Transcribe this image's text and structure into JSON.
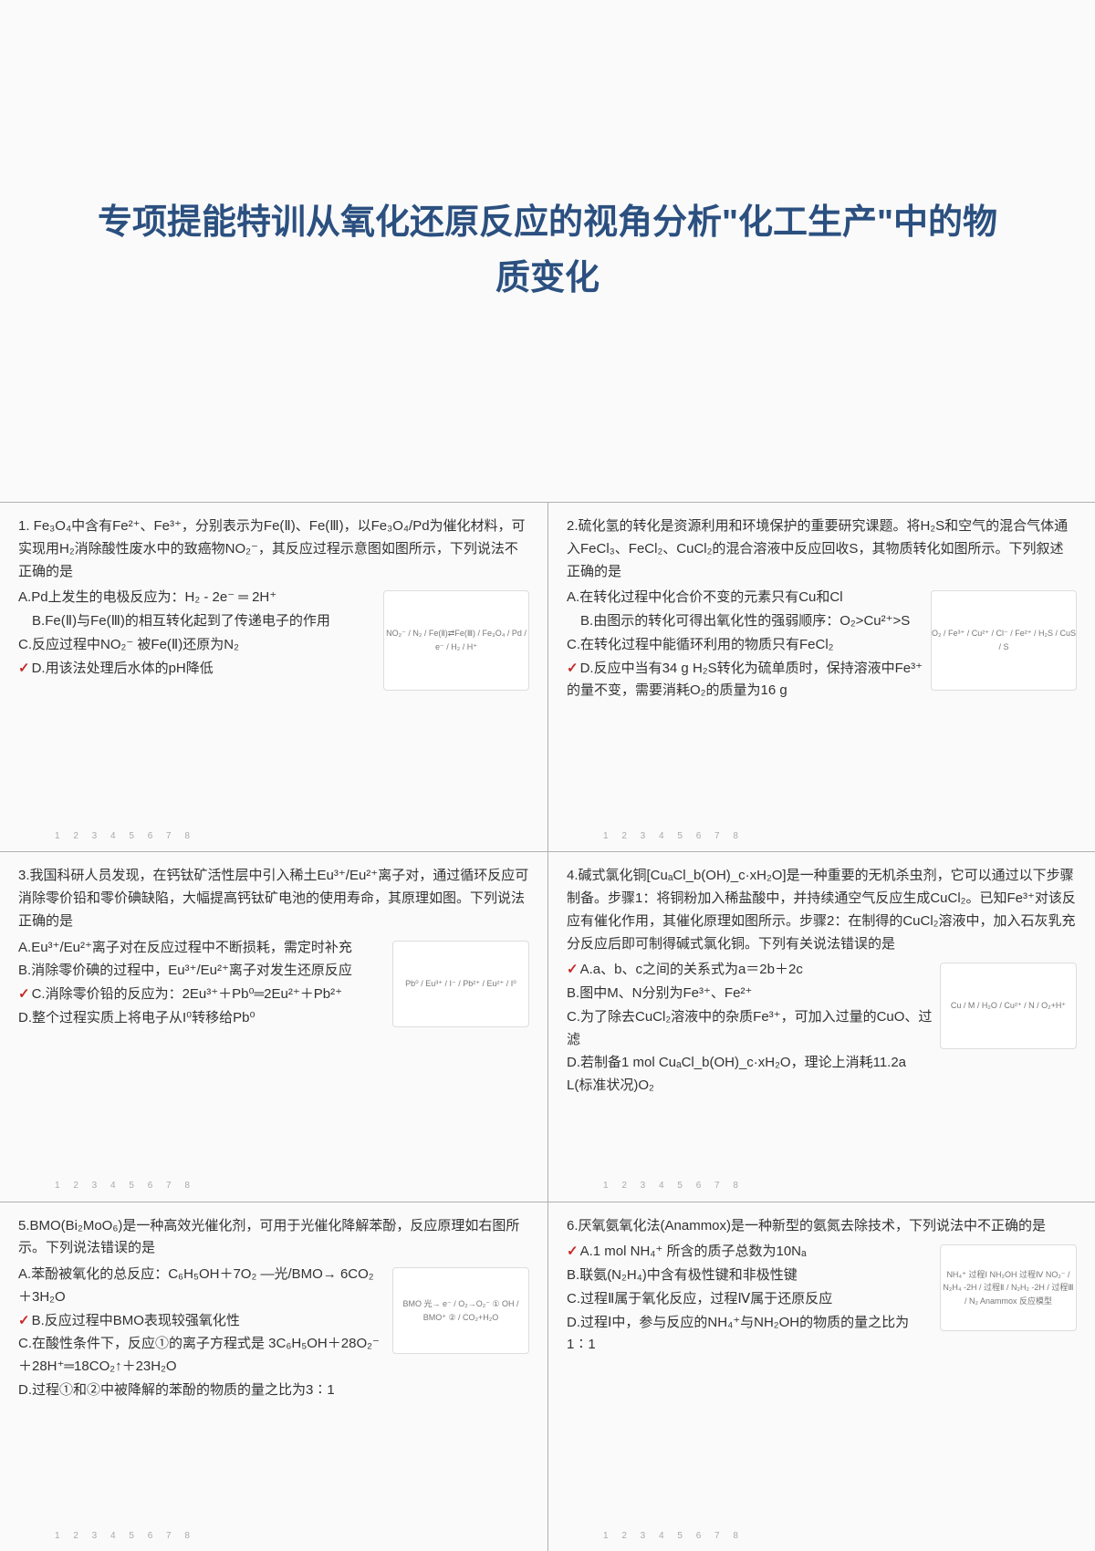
{
  "title": "专项提能特训从氧化还原反应的视角分析\"化工生产\"中的物质变化",
  "pager": "1 2 3 4 5 6 7 8",
  "questions": [
    {
      "stem": "1. Fe₃O₄中含有Fe²⁺、Fe³⁺，分别表示为Fe(Ⅱ)、Fe(Ⅲ)，以Fe₃O₄/Pd为催化材料，可实现用H₂消除酸性废水中的致癌物NO₂⁻，其反应过程示意图如图所示，下列说法不正确的是",
      "fig": "NO₂⁻ / N₂ / Fe(Ⅱ)⇄Fe(Ⅲ) / Fe₃O₄ / Pd / e⁻ / H₂ / H⁺",
      "opts": [
        {
          "k": "A",
          "t": "Pd上发生的电极反应为：H₂ - 2e⁻ ═ 2H⁺",
          "m": false
        },
        {
          "k": "B",
          "t": "Fe(Ⅱ)与Fe(Ⅲ)的相互转化起到了传递电子的作用",
          "m": false,
          "indent": true
        },
        {
          "k": "C",
          "t": "反应过程中NO₂⁻ 被Fe(Ⅱ)还原为N₂",
          "m": false
        },
        {
          "k": "D",
          "t": "用该法处理后水体的pH降低",
          "m": true
        }
      ]
    },
    {
      "stem": "2.硫化氢的转化是资源利用和环境保护的重要研究课题。将H₂S和空气的混合气体通入FeCl₃、FeCl₂、CuCl₂的混合溶液中反应回收S，其物质转化如图所示。下列叙述正确的是",
      "fig": "O₂ / Fe³⁺ / Cu²⁺ / Cl⁻ / Fe²⁺ / H₂S / CuS / S",
      "opts": [
        {
          "k": "A",
          "t": "在转化过程中化合价不变的元素只有Cu和Cl",
          "m": false
        },
        {
          "k": "B",
          "t": "由图示的转化可得出氧化性的强弱顺序：O₂>Cu²⁺>S",
          "m": false,
          "indent": true
        },
        {
          "k": "C",
          "t": "在转化过程中能循环利用的物质只有FeCl₂",
          "m": false
        },
        {
          "k": "D",
          "t": "反应中当有34 g H₂S转化为硫单质时，保持溶液中Fe³⁺的量不变，需要消耗O₂的质量为16 g",
          "m": true
        }
      ]
    },
    {
      "stem": "3.我国科研人员发现，在钙钛矿活性层中引入稀土Eu³⁺/Eu²⁺离子对，通过循环反应可消除零价铅和零价碘缺陷，大幅提高钙钛矿电池的使用寿命，其原理如图。下列说法正确的是",
      "fig": "Pb⁰ / Eu³⁺ / I⁻ / Pb²⁺ / Eu²⁺ / I⁰",
      "opts": [
        {
          "k": "A",
          "t": "Eu³⁺/Eu²⁺离子对在反应过程中不断损耗，需定时补充",
          "m": false
        },
        {
          "k": "B",
          "t": "消除零价碘的过程中，Eu³⁺/Eu²⁺离子对发生还原反应",
          "m": false
        },
        {
          "k": "C",
          "t": "消除零价铅的反应为：2Eu³⁺＋Pb⁰═2Eu²⁺＋Pb²⁺",
          "m": true
        },
        {
          "k": "D",
          "t": "整个过程实质上将电子从I⁰转移给Pb⁰",
          "m": false
        }
      ]
    },
    {
      "stem": "4.碱式氯化铜[CuₐCl_b(OH)_c·xH₂O]是一种重要的无机杀虫剂，它可以通过以下步骤制备。步骤1：将铜粉加入稀盐酸中，并持续通空气反应生成CuCl₂。已知Fe³⁺对该反应有催化作用，其催化原理如图所示。步骤2：在制得的CuCl₂溶液中，加入石灰乳充分反应后即可制得碱式氯化铜。下列有关说法错误的是",
      "fig": "Cu / M / H₂O / Cu²⁺ / N / O₂+H⁺",
      "opts": [
        {
          "k": "A",
          "t": "a、b、c之间的关系式为a＝2b＋2c",
          "m": true
        },
        {
          "k": "B",
          "t": "图中M、N分别为Fe³⁺、Fe²⁺",
          "m": false
        },
        {
          "k": "C",
          "t": "为了除去CuCl₂溶液中的杂质Fe³⁺，可加入过量的CuO、过滤",
          "m": false
        },
        {
          "k": "D",
          "t": "若制备1 mol CuₐCl_b(OH)_c·xH₂O，理论上消耗11.2a L(标准状况)O₂",
          "m": false
        }
      ]
    },
    {
      "stem": "5.BMO(Bi₂MoO₆)是一种高效光催化剂，可用于光催化降解苯酚，反应原理如右图所示。下列说法错误的是",
      "fig": "BMO 光→ e⁻ / O₂→O₂⁻ ① OH / BMO⁺ ② / CO₂+H₂O",
      "opts": [
        {
          "k": "A",
          "t": "苯酚被氧化的总反应：C₆H₅OH＋7O₂ —光/BMO→ 6CO₂＋3H₂O",
          "m": false
        },
        {
          "k": "B",
          "t": "反应过程中BMO表现较强氧化性",
          "m": true
        },
        {
          "k": "C",
          "t": "在酸性条件下，反应①的离子方程式是  3C₆H₅OH＋28O₂⁻＋28H⁺═18CO₂↑＋23H₂O",
          "m": false,
          "indent": false
        },
        {
          "k": "D",
          "t": "过程①和②中被降解的苯酚的物质的量之比为3∶1",
          "m": false
        }
      ]
    },
    {
      "stem": "6.厌氧氨氧化法(Anammox)是一种新型的氨氮去除技术，下列说法中不正确的是",
      "fig": "NH₄⁺ 过程Ⅰ NH₂OH 过程Ⅳ NO₂⁻ / N₂H₄ -2H / 过程Ⅱ / N₂H₂ -2H / 过程Ⅲ / N₂ Anammox 反应模型",
      "opts": [
        {
          "k": "A",
          "t": "1 mol NH₄⁺ 所含的质子总数为10Nₐ",
          "m": true
        },
        {
          "k": "B",
          "t": "联氨(N₂H₄)中含有极性键和非极性键",
          "m": false
        },
        {
          "k": "C",
          "t": "过程Ⅱ属于氧化反应，过程Ⅳ属于还原反应",
          "m": false
        },
        {
          "k": "D",
          "t": "过程Ⅰ中，参与反应的NH₄⁺与NH₂OH的物质的量之比为1∶1",
          "m": false
        }
      ]
    }
  ]
}
